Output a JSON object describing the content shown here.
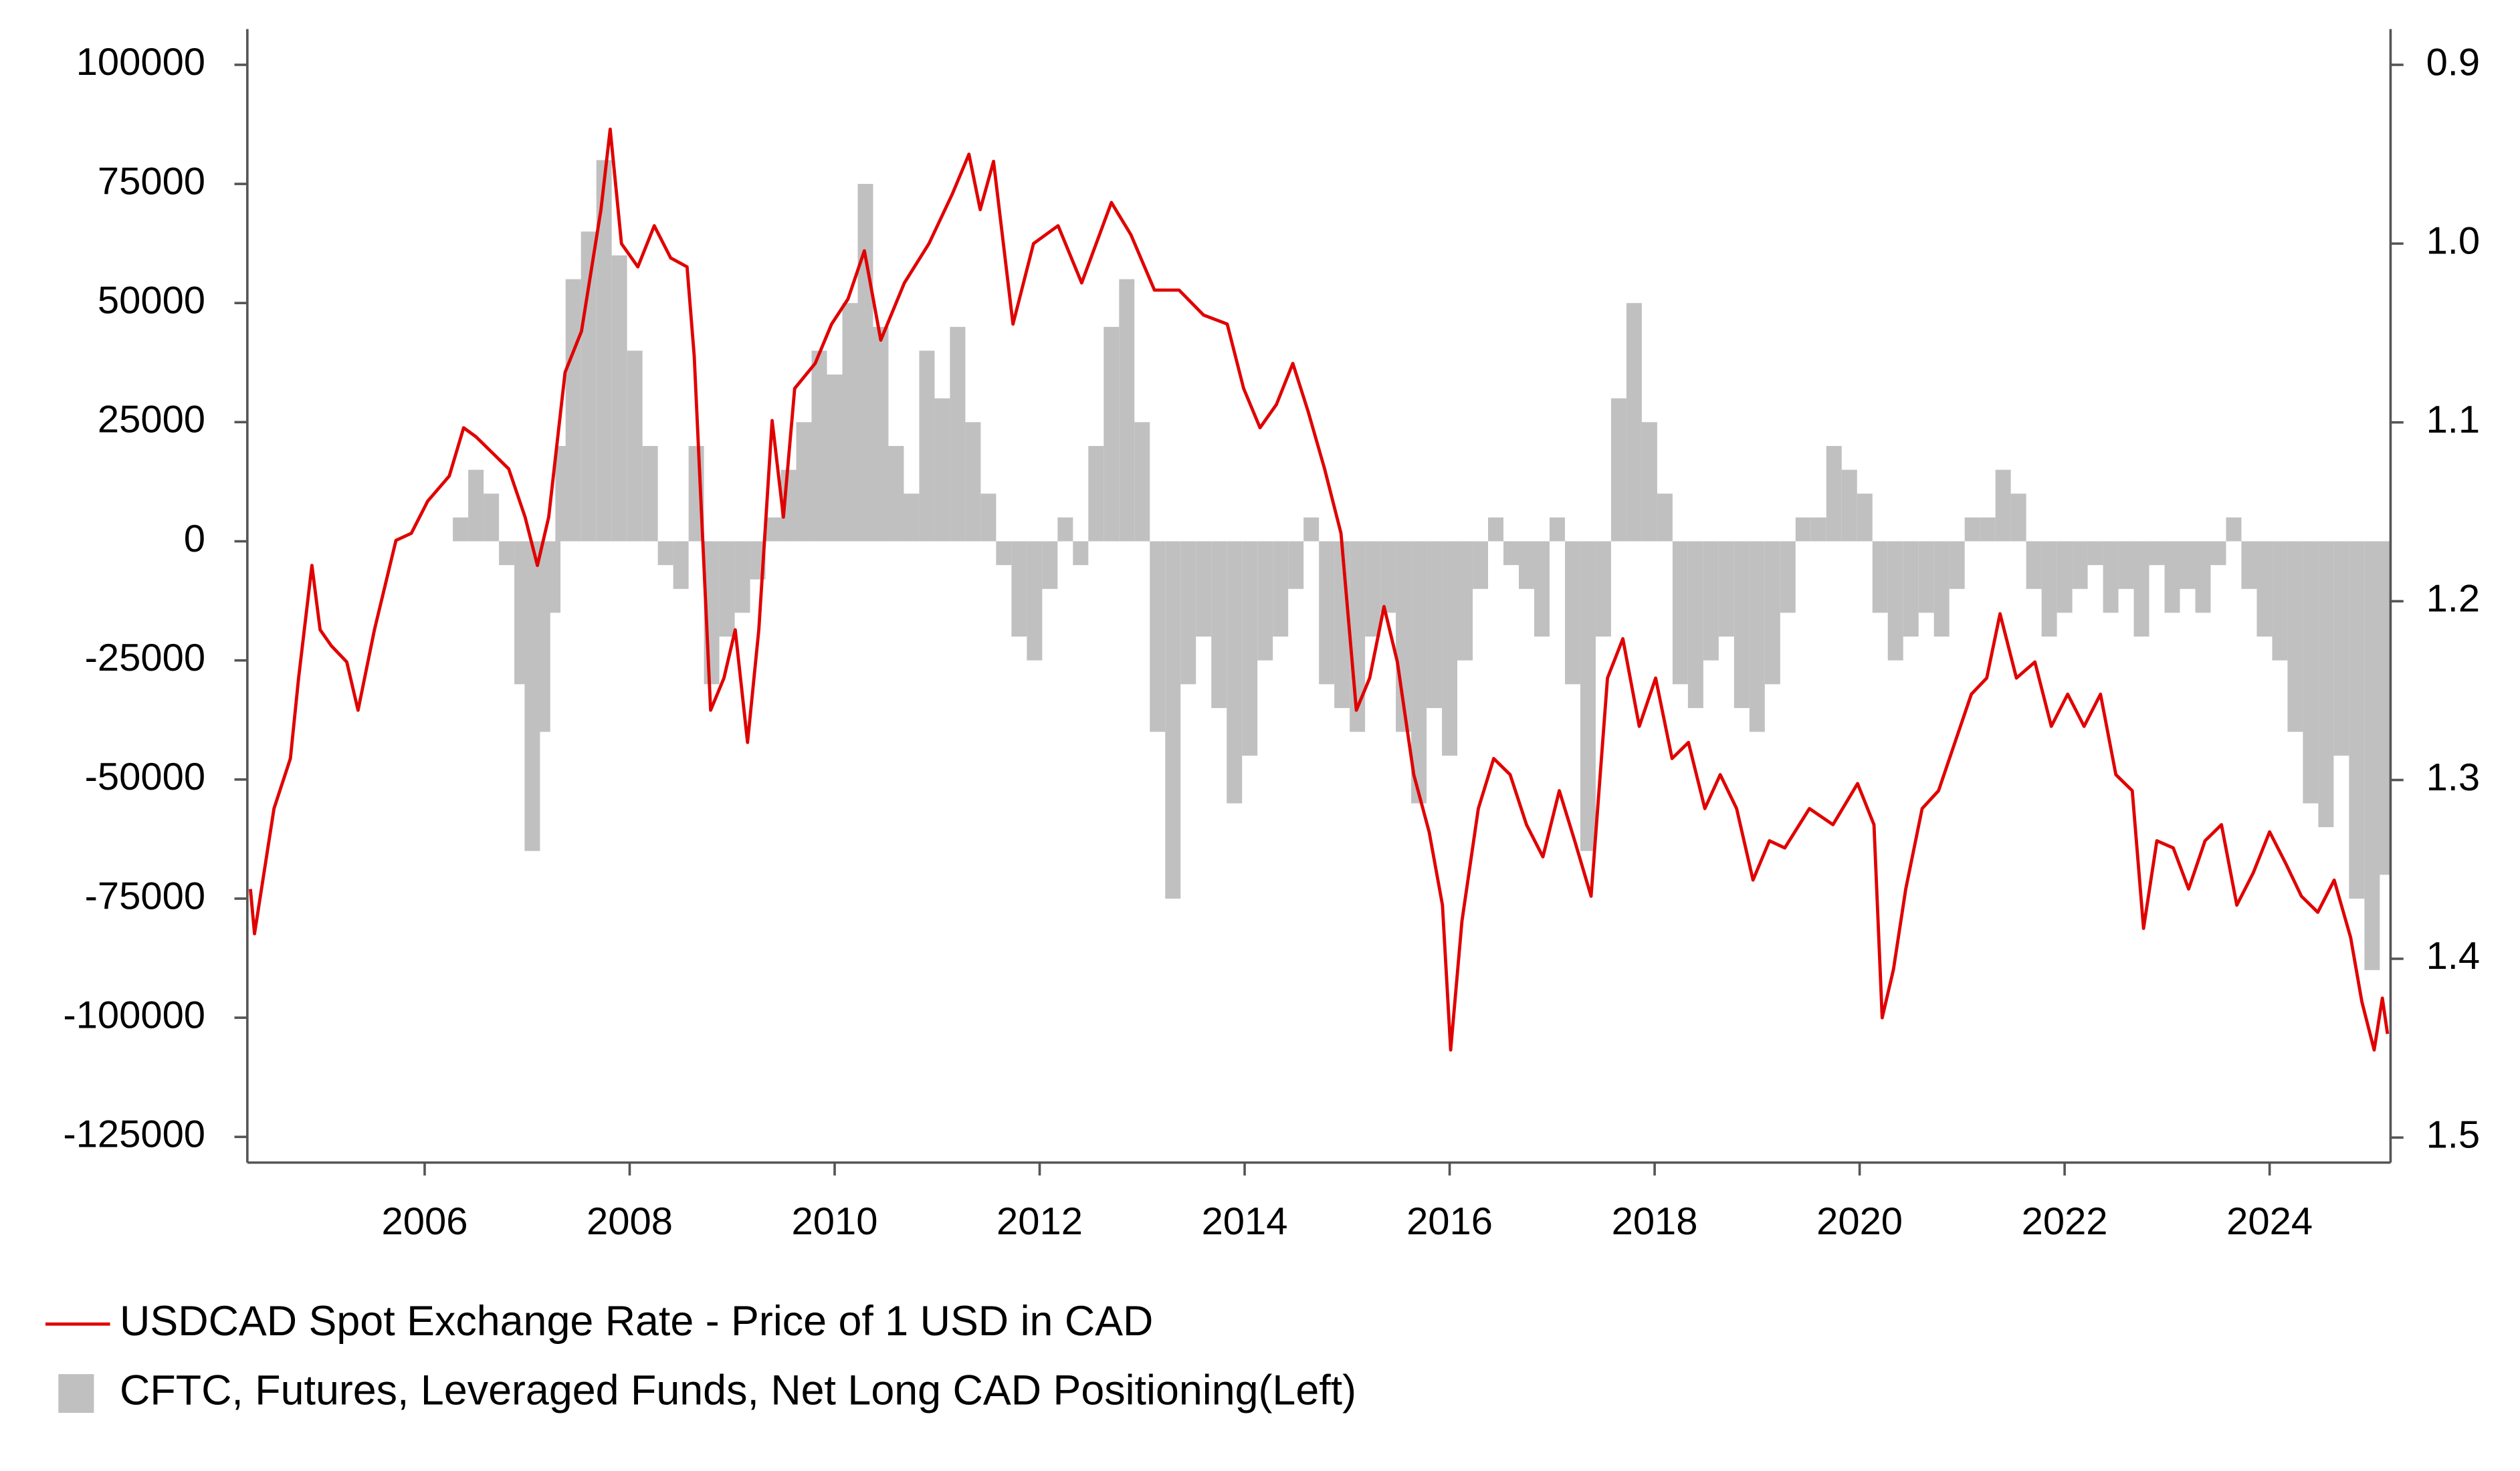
{
  "chart_data": {
    "type": "bar_line",
    "xlim": [
      2004.27,
      2025.18
    ],
    "xticks": [
      2006,
      2008,
      2010,
      2012,
      2014,
      2016,
      2018,
      2020,
      2022,
      2024
    ],
    "ylim": [
      -130400,
      107500
    ],
    "yticks": [
      -125000,
      -100000,
      -75000,
      -50000,
      -25000,
      0,
      25000,
      50000,
      75000,
      100000
    ],
    "y2lim": [
      0.88,
      1.514
    ],
    "y2_reversed": true,
    "y2ticks": [
      0.9,
      {
        "value": 1,
        "label": "1.0"
      },
      1.1,
      1.2,
      1.3,
      1.4,
      1.5
    ],
    "legend": "bottom-left",
    "series": [
      {
        "name": "USDCAD Spot Exchange Rate - Price of 1 USD in CAD",
        "type": "line",
        "axis": "y2",
        "color": "#e00000",
        "x": [
          2004.3,
          2004.34,
          2004.53,
          2004.69,
          2004.77,
          2004.9,
          2004.98,
          2005.09,
          2005.24,
          2005.35,
          2005.51,
          2005.72,
          2005.87,
          2006.03,
          2006.24,
          2006.38,
          2006.5,
          2006.66,
          2006.82,
          2006.98,
          2007.1,
          2007.21,
          2007.37,
          2007.53,
          2007.72,
          2007.81,
          2007.92,
          2008.08,
          2008.24,
          2008.4,
          2008.56,
          2008.63,
          2008.79,
          2008.92,
          2009.03,
          2009.15,
          2009.26,
          2009.39,
          2009.5,
          2009.61,
          2009.81,
          2009.97,
          2010.13,
          2010.29,
          2010.45,
          2010.68,
          2010.92,
          2011.15,
          2011.31,
          2011.42,
          2011.55,
          2011.74,
          2011.94,
          2012.18,
          2012.41,
          2012.7,
          2012.89,
          2013.12,
          2013.36,
          2013.6,
          2013.83,
          2013.99,
          2014.15,
          2014.31,
          2014.47,
          2014.62,
          2014.78,
          2014.94,
          2015.09,
          2015.22,
          2015.36,
          2015.49,
          2015.65,
          2015.8,
          2015.93,
          2016.01,
          2016.12,
          2016.28,
          2016.43,
          2016.59,
          2016.75,
          2016.91,
          2017.07,
          2017.22,
          2017.38,
          2017.54,
          2017.69,
          2017.85,
          2018.01,
          2018.17,
          2018.33,
          2018.49,
          2018.64,
          2018.8,
          2018.96,
          2019.12,
          2019.27,
          2019.51,
          2019.74,
          2019.98,
          2020.14,
          2020.22,
          2020.33,
          2020.45,
          2020.61,
          2020.77,
          2020.93,
          2021.09,
          2021.24,
          2021.37,
          2021.53,
          2021.71,
          2021.87,
          2022.03,
          2022.19,
          2022.35,
          2022.5,
          2022.66,
          2022.77,
          2022.9,
          2023.06,
          2023.21,
          2023.37,
          2023.53,
          2023.68,
          2023.84,
          2024.0,
          2024.16,
          2024.31,
          2024.47,
          2024.63,
          2024.79,
          2024.9,
          2025.02,
          2025.1,
          2025.15
        ],
        "values": [
          1.361,
          1.386,
          1.316,
          1.288,
          1.243,
          1.18,
          1.216,
          1.225,
          1.234,
          1.261,
          1.216,
          1.166,
          1.162,
          1.144,
          1.13,
          1.103,
          1.108,
          1.117,
          1.126,
          1.153,
          1.18,
          1.153,
          1.072,
          1.049,
          0.981,
          0.936,
          1.0,
          1.013,
          0.99,
          1.008,
          1.013,
          1.063,
          1.261,
          1.243,
          1.216,
          1.279,
          1.216,
          1.099,
          1.153,
          1.081,
          1.067,
          1.045,
          1.031,
          1.004,
          1.054,
          1.022,
          1.0,
          0.972,
          0.95,
          0.981,
          0.954,
          1.045,
          1.0,
          0.99,
          1.022,
          0.977,
          0.995,
          1.026,
          1.026,
          1.04,
          1.045,
          1.081,
          1.103,
          1.09,
          1.067,
          1.094,
          1.126,
          1.162,
          1.261,
          1.243,
          1.203,
          1.234,
          1.297,
          1.329,
          1.37,
          1.451,
          1.379,
          1.316,
          1.288,
          1.297,
          1.325,
          1.343,
          1.306,
          1.334,
          1.365,
          1.243,
          1.221,
          1.27,
          1.243,
          1.288,
          1.279,
          1.316,
          1.297,
          1.316,
          1.356,
          1.334,
          1.338,
          1.316,
          1.325,
          1.302,
          1.325,
          1.433,
          1.406,
          1.361,
          1.316,
          1.306,
          1.279,
          1.252,
          1.243,
          1.207,
          1.243,
          1.234,
          1.27,
          1.252,
          1.27,
          1.252,
          1.297,
          1.306,
          1.383,
          1.334,
          1.338,
          1.361,
          1.334,
          1.325,
          1.37,
          1.352,
          1.329,
          1.347,
          1.365,
          1.374,
          1.356,
          1.388,
          1.424,
          1.451,
          1.422,
          1.442
        ]
      },
      {
        "name": "CFTC, Futures, Leveraged Funds, Net Long CAD Positioning(Left)",
        "type": "bar",
        "color": "#c0c0c0",
        "x": [
          2006.35,
          2006.5,
          2006.65,
          2006.8,
          2006.95,
          2007.05,
          2007.15,
          2007.25,
          2007.35,
          2007.45,
          2007.6,
          2007.75,
          2007.9,
          2008.05,
          2008.2,
          2008.35,
          2008.5,
          2008.65,
          2008.8,
          2008.95,
          2009.1,
          2009.25,
          2009.4,
          2009.55,
          2009.7,
          2009.85,
          2010.0,
          2010.15,
          2010.3,
          2010.45,
          2010.6,
          2010.75,
          2010.9,
          2011.05,
          2011.2,
          2011.35,
          2011.5,
          2011.65,
          2011.8,
          2011.95,
          2012.1,
          2012.25,
          2012.4,
          2012.55,
          2012.7,
          2012.85,
          2013.0,
          2013.15,
          2013.3,
          2013.45,
          2013.6,
          2013.75,
          2013.9,
          2014.05,
          2014.2,
          2014.35,
          2014.5,
          2014.65,
          2014.8,
          2014.95,
          2015.1,
          2015.25,
          2015.4,
          2015.55,
          2015.7,
          2015.85,
          2016.0,
          2016.15,
          2016.3,
          2016.45,
          2016.6,
          2016.75,
          2016.9,
          2017.05,
          2017.2,
          2017.35,
          2017.5,
          2017.65,
          2017.8,
          2017.95,
          2018.1,
          2018.25,
          2018.4,
          2018.55,
          2018.7,
          2018.85,
          2019.0,
          2019.15,
          2019.3,
          2019.45,
          2019.6,
          2019.75,
          2019.9,
          2020.05,
          2020.2,
          2020.35,
          2020.5,
          2020.65,
          2020.8,
          2020.95,
          2021.1,
          2021.25,
          2021.4,
          2021.55,
          2021.7,
          2021.85,
          2022.0,
          2022.15,
          2022.3,
          2022.45,
          2022.6,
          2022.75,
          2022.9,
          2023.05,
          2023.2,
          2023.35,
          2023.5,
          2023.65,
          2023.8,
          2023.95,
          2024.1,
          2024.25,
          2024.4,
          2024.55,
          2024.7,
          2024.85,
          2025.0,
          2025.1
        ],
        "values": [
          5000,
          15000,
          10000,
          -5000,
          -30000,
          -65000,
          -40000,
          -15000,
          20000,
          55000,
          65000,
          80000,
          60000,
          40000,
          20000,
          -5000,
          -10000,
          20000,
          -30000,
          -20000,
          -15000,
          -8000,
          5000,
          15000,
          25000,
          40000,
          35000,
          50000,
          75000,
          45000,
          20000,
          10000,
          40000,
          30000,
          45000,
          25000,
          10000,
          -5000,
          -20000,
          -25000,
          -10000,
          5000,
          -5000,
          20000,
          45000,
          55000,
          25000,
          -40000,
          -75000,
          -30000,
          -20000,
          -35000,
          -55000,
          -45000,
          -25000,
          -20000,
          -10000,
          5000,
          -30000,
          -35000,
          -40000,
          -20000,
          -15000,
          -40000,
          -55000,
          -35000,
          -45000,
          -25000,
          -10000,
          5000,
          -5000,
          -10000,
          -20000,
          5000,
          -30000,
          -65000,
          -20000,
          30000,
          50000,
          25000,
          10000,
          -30000,
          -35000,
          -25000,
          -20000,
          -35000,
          -40000,
          -30000,
          -15000,
          5000,
          5000,
          20000,
          15000,
          10000,
          -15000,
          -25000,
          -20000,
          -15000,
          -20000,
          -10000,
          5000,
          5000,
          15000,
          10000,
          -10000,
          -20000,
          -15000,
          -10000,
          -5000,
          -15000,
          -10000,
          -20000,
          -5000,
          -15000,
          -10000,
          -15000,
          -5000,
          5000,
          -10000,
          -20000,
          -25000,
          -40000,
          -55000,
          -60000,
          -45000,
          -75000,
          -90000,
          -70000
        ]
      }
    ]
  }
}
